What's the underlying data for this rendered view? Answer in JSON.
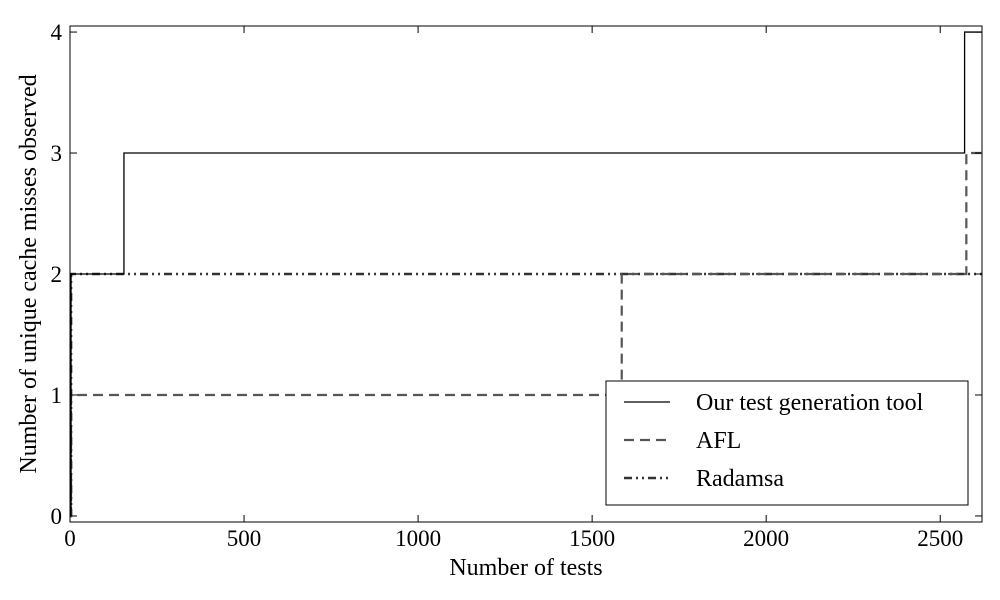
{
  "chart_data": {
    "type": "line",
    "step": true,
    "xlabel": "Number of tests",
    "ylabel": "Number of unique cache misses observed",
    "xlim": [
      0,
      2620
    ],
    "ylim": [
      -0.05,
      4.05
    ],
    "xticks": [
      0,
      500,
      1000,
      1500,
      2000,
      2500
    ],
    "yticks": [
      0,
      1,
      2,
      3,
      4
    ],
    "x_tick_labels": [
      "0",
      "500",
      "1000",
      "1500",
      "2000",
      "2500"
    ],
    "y_tick_labels": [
      "0",
      "1",
      "2",
      "3",
      "4"
    ],
    "grid": false,
    "legend_position": "lower-right",
    "series": [
      {
        "name": "Our test generation tool",
        "style": "solid",
        "color": "#000000",
        "x": [
          0,
          3,
          155,
          2570,
          2620
        ],
        "y": [
          0,
          2,
          3,
          4,
          4
        ]
      },
      {
        "name": "AFL",
        "style": "dashed",
        "color": "#555555",
        "x": [
          0,
          3,
          1585,
          2575,
          2620
        ],
        "y": [
          0,
          1,
          2,
          3,
          3
        ]
      },
      {
        "name": "Radamsa",
        "style": "dashdotdot",
        "color": "#333333",
        "x": [
          0,
          3,
          2620
        ],
        "y": [
          0,
          2,
          2
        ]
      }
    ]
  }
}
